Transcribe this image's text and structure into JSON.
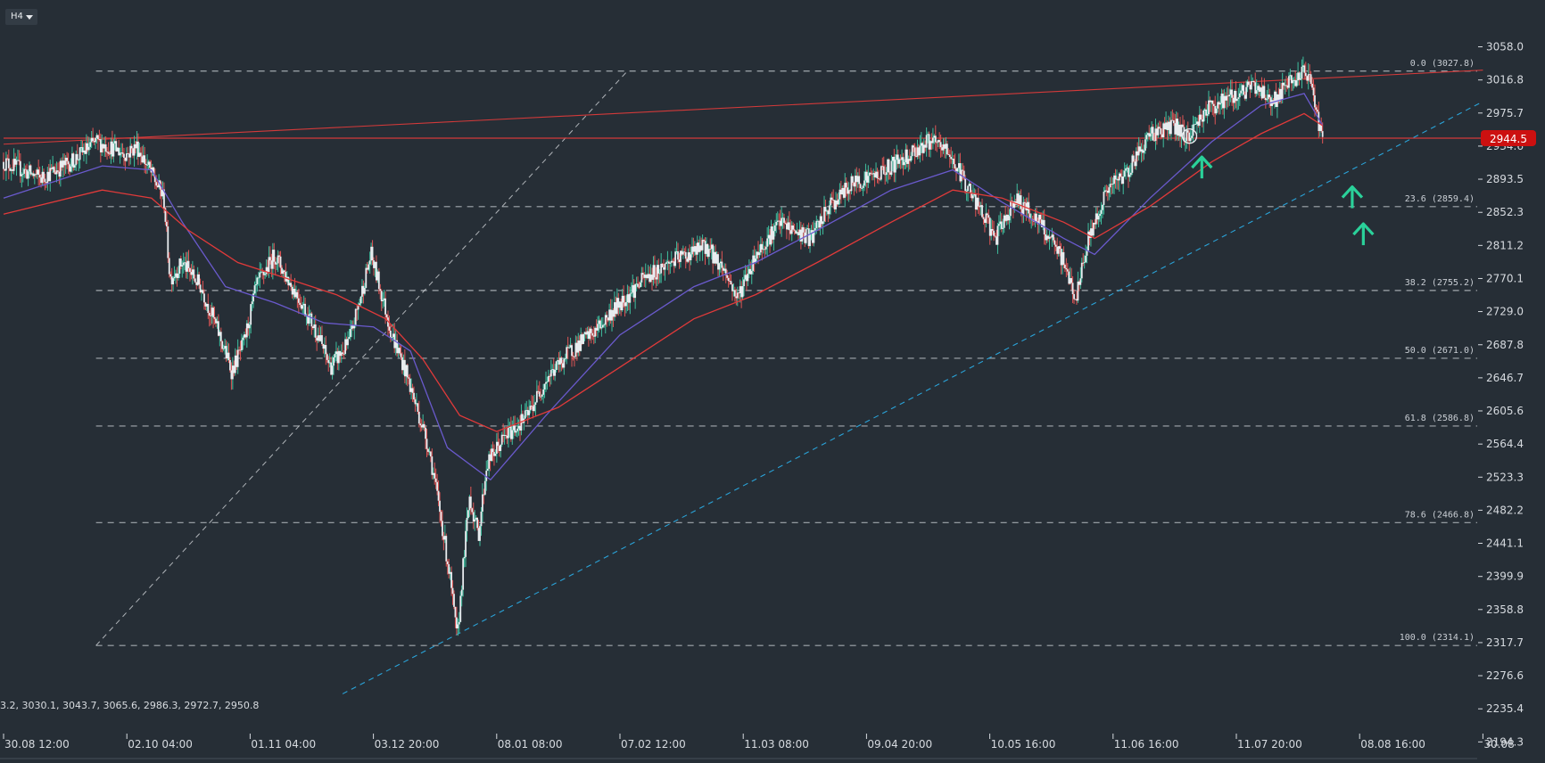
{
  "toolbar": {
    "timeframe": "H4"
  },
  "price_tag": {
    "value": "2944.5",
    "color": "#cc1010"
  },
  "ohlc_readout": "3.2, 3030.1, 3043.7, 3065.6, 2986.3, 2972.7, 2950.8",
  "colors": {
    "background": "#262e36",
    "up_candle": "#26a69a",
    "down_candle": "#e04848",
    "ma_fast": "#6a5acd",
    "ma_slow": "#e03a3a",
    "trendline_red": "#d23a3a",
    "trendline_blue": "#2aa3d8",
    "fib_line": "#b8bec4",
    "arrow": "#2ad19a"
  },
  "chart_data": {
    "type": "candlestick",
    "timeframe": "H4",
    "ylim": [
      2194.3,
      3070
    ],
    "y_ticks": [
      3058.0,
      3016.8,
      2975.7,
      2934.6,
      2893.5,
      2852.3,
      2811.2,
      2770.1,
      2729.0,
      2687.8,
      2646.7,
      2605.6,
      2564.4,
      2523.3,
      2482.2,
      2441.1,
      2399.9,
      2358.8,
      2317.7,
      2276.6,
      2235.4,
      2194.3
    ],
    "y_tick_labels": [
      "3058.0",
      "3016.8",
      "2975.7",
      "2934.6",
      "2893.5",
      "2852.3",
      "2811.2",
      "2770.1",
      "2729.0",
      "2687.8",
      "2646.7",
      "2605.6",
      "2564.4",
      "2523.3",
      "2482.2",
      "2441.1",
      "2399.9",
      "2358.8",
      "2317.7",
      "2276.6",
      "2235.4",
      "2194.3"
    ],
    "x_tick_labels": [
      "30.08 12:00",
      "02.10 04:00",
      "01.11 04:00",
      "03.12 20:00",
      "08.01 08:00",
      "07.02 12:00",
      "11.03 08:00",
      "09.04 20:00",
      "10.05 16:00",
      "11.06 16:00",
      "11.07 20:00",
      "08.08 16:00",
      "30.08"
    ],
    "x_span": [
      0,
      12
    ],
    "last_price": 2944.5,
    "price_path": [
      [
        0.0,
        2915
      ],
      [
        0.3,
        2895
      ],
      [
        0.55,
        2915
      ],
      [
        0.75,
        2940
      ],
      [
        1.0,
        2925
      ],
      [
        1.08,
        2935
      ],
      [
        1.2,
        2900
      ],
      [
        1.3,
        2870
      ],
      [
        1.35,
        2770
      ],
      [
        1.45,
        2790
      ],
      [
        1.6,
        2760
      ],
      [
        1.75,
        2700
      ],
      [
        1.85,
        2655
      ],
      [
        1.95,
        2690
      ],
      [
        2.05,
        2760
      ],
      [
        2.2,
        2800
      ],
      [
        2.3,
        2770
      ],
      [
        2.4,
        2745
      ],
      [
        2.55,
        2700
      ],
      [
        2.65,
        2660
      ],
      [
        2.8,
        2690
      ],
      [
        2.9,
        2750
      ],
      [
        2.98,
        2800
      ],
      [
        3.05,
        2760
      ],
      [
        3.15,
        2700
      ],
      [
        3.25,
        2660
      ],
      [
        3.35,
        2610
      ],
      [
        3.45,
        2560
      ],
      [
        3.55,
        2470
      ],
      [
        3.62,
        2400
      ],
      [
        3.68,
        2320
      ],
      [
        3.72,
        2400
      ],
      [
        3.78,
        2500
      ],
      [
        3.85,
        2450
      ],
      [
        3.92,
        2540
      ],
      [
        4.05,
        2570
      ],
      [
        4.25,
        2600
      ],
      [
        4.4,
        2645
      ],
      [
        4.6,
        2680
      ],
      [
        4.8,
        2705
      ],
      [
        5.0,
        2740
      ],
      [
        5.2,
        2770
      ],
      [
        5.4,
        2790
      ],
      [
        5.55,
        2800
      ],
      [
        5.7,
        2810
      ],
      [
        5.85,
        2780
      ],
      [
        5.95,
        2745
      ],
      [
        6.1,
        2800
      ],
      [
        6.3,
        2840
      ],
      [
        6.4,
        2830
      ],
      [
        6.55,
        2820
      ],
      [
        6.7,
        2860
      ],
      [
        6.9,
        2890
      ],
      [
        7.1,
        2900
      ],
      [
        7.3,
        2920
      ],
      [
        7.5,
        2940
      ],
      [
        7.65,
        2930
      ],
      [
        7.8,
        2890
      ],
      [
        7.9,
        2860
      ],
      [
        8.05,
        2820
      ],
      [
        8.2,
        2870
      ],
      [
        8.4,
        2840
      ],
      [
        8.6,
        2790
      ],
      [
        8.7,
        2745
      ],
      [
        8.8,
        2820
      ],
      [
        8.95,
        2880
      ],
      [
        9.1,
        2900
      ],
      [
        9.3,
        2950
      ],
      [
        9.5,
        2960
      ],
      [
        9.6,
        2945
      ],
      [
        9.75,
        2980
      ],
      [
        9.95,
        2995
      ],
      [
        10.15,
        3010
      ],
      [
        10.3,
        2990
      ],
      [
        10.45,
        3015
      ],
      [
        10.55,
        3025
      ],
      [
        10.62,
        3010
      ],
      [
        10.65,
        2975
      ],
      [
        10.7,
        2944.5
      ]
    ],
    "series": [
      {
        "name": "",
        "role": "fast moving average",
        "points": [
          [
            0.0,
            2870
          ],
          [
            0.8,
            2910
          ],
          [
            1.2,
            2905
          ],
          [
            1.45,
            2840
          ],
          [
            1.8,
            2760
          ],
          [
            2.2,
            2740
          ],
          [
            2.6,
            2715
          ],
          [
            3.0,
            2710
          ],
          [
            3.3,
            2680
          ],
          [
            3.6,
            2560
          ],
          [
            3.95,
            2520
          ],
          [
            4.4,
            2600
          ],
          [
            5.0,
            2700
          ],
          [
            5.6,
            2760
          ],
          [
            6.1,
            2790
          ],
          [
            6.6,
            2830
          ],
          [
            7.2,
            2880
          ],
          [
            7.7,
            2905
          ],
          [
            8.1,
            2865
          ],
          [
            8.6,
            2820
          ],
          [
            8.85,
            2800
          ],
          [
            9.3,
            2870
          ],
          [
            9.8,
            2940
          ],
          [
            10.2,
            2985
          ],
          [
            10.55,
            3000
          ],
          [
            10.7,
            2960
          ]
        ]
      },
      {
        "name": "",
        "role": "slow moving average",
        "points": [
          [
            0.0,
            2850
          ],
          [
            0.8,
            2880
          ],
          [
            1.2,
            2870
          ],
          [
            1.5,
            2830
          ],
          [
            1.9,
            2790
          ],
          [
            2.3,
            2770
          ],
          [
            2.7,
            2750
          ],
          [
            3.1,
            2720
          ],
          [
            3.4,
            2670
          ],
          [
            3.7,
            2600
          ],
          [
            4.0,
            2580
          ],
          [
            4.5,
            2610
          ],
          [
            5.0,
            2660
          ],
          [
            5.6,
            2720
          ],
          [
            6.1,
            2750
          ],
          [
            6.6,
            2790
          ],
          [
            7.2,
            2840
          ],
          [
            7.7,
            2880
          ],
          [
            8.1,
            2870
          ],
          [
            8.6,
            2840
          ],
          [
            8.85,
            2820
          ],
          [
            9.3,
            2860
          ],
          [
            9.8,
            2915
          ],
          [
            10.2,
            2950
          ],
          [
            10.55,
            2975
          ],
          [
            10.7,
            2960
          ]
        ]
      }
    ],
    "fibonacci": {
      "x_start": 0.75,
      "x_end": 12.0,
      "levels": [
        {
          "label": "0.0 (3027.8)",
          "price": 3027.8
        },
        {
          "label": "23.6 (2859.4)",
          "price": 2859.4
        },
        {
          "label": "38.2 (2755.2)",
          "price": 2755.2
        },
        {
          "label": "50.0 (2671.0)",
          "price": 2671.0
        },
        {
          "label": "61.8 (2586.8)",
          "price": 2586.8
        },
        {
          "label": "78.6 (2466.8)",
          "price": 2466.8
        },
        {
          "label": "100.0 (2314.1)",
          "price": 2314.1
        }
      ],
      "anchor_line": [
        [
          0.75,
          2314.1
        ],
        [
          5.06,
          3027.8
        ]
      ]
    },
    "trendlines": [
      {
        "kind": "resistance",
        "style": "solid",
        "from": [
          0.0,
          2937
        ],
        "to": [
          12.0,
          3029
        ]
      },
      {
        "kind": "horizontal",
        "style": "solid",
        "from": [
          0.0,
          2944.5
        ],
        "to": [
          12.0,
          2944.5
        ]
      },
      {
        "kind": "support",
        "style": "dashed",
        "from": [
          2.75,
          2254
        ],
        "to": [
          12.0,
          2990
        ]
      }
    ],
    "markers": [
      {
        "type": "arrow-up",
        "x": 9.72,
        "price": 2910
      },
      {
        "type": "arrow-up",
        "x": 10.94,
        "price": 2873
      },
      {
        "type": "arrow-up",
        "x": 11.03,
        "price": 2827
      },
      {
        "type": "circle",
        "x": 9.62,
        "price": 2947
      }
    ]
  }
}
